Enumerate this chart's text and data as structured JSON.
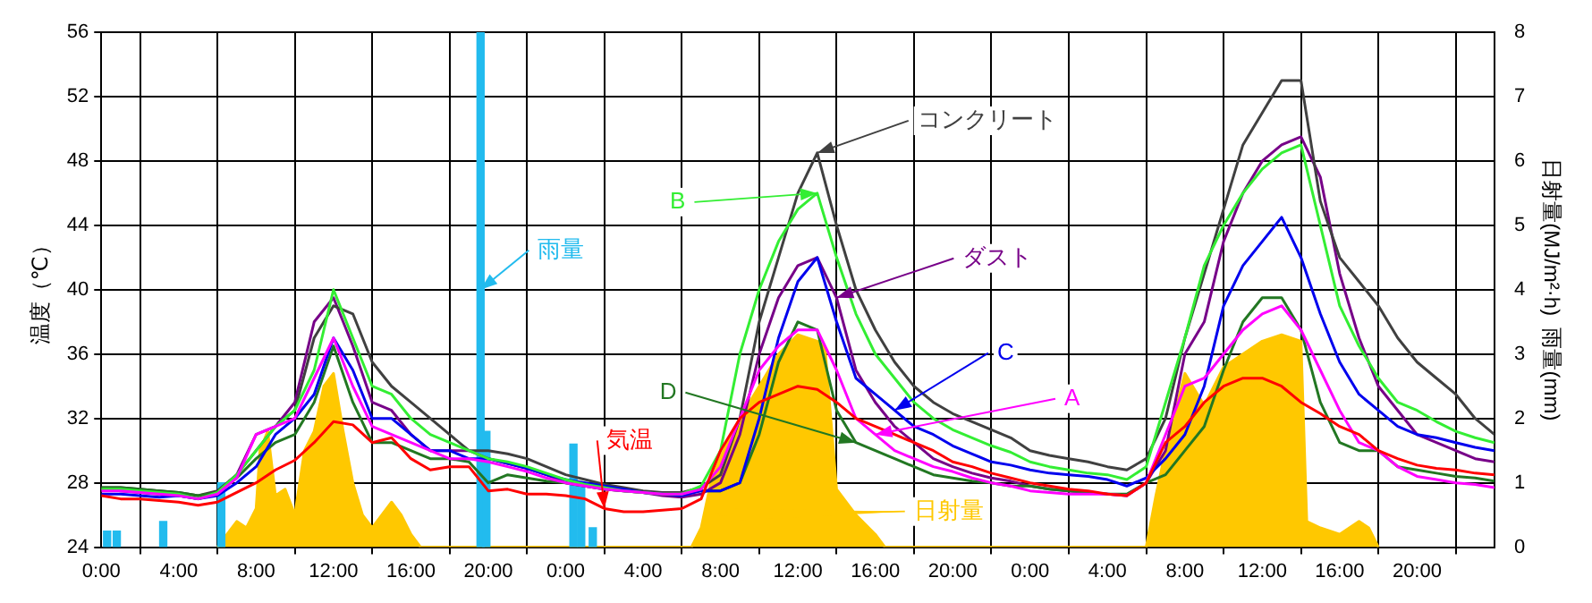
{
  "chart_data": {
    "type": "line",
    "ylabel": "温度（℃）",
    "y2label": "日射量(MJ/m²·h)  雨量(mm)",
    "x": [
      "--01-01T00:00",
      "--01-01T01:00",
      "--01-01T02:00",
      "--01-01T03:00",
      "--01-01T04:00",
      "--01-01T05:00",
      "--01-01T06:00",
      "--01-01T07:00",
      "--01-01T08:00",
      "--01-01T09:00",
      "--01-01T10:00",
      "--01-01T11:00",
      "--01-01T12:00",
      "--01-01T13:00",
      "--01-01T14:00",
      "--01-01T15:00",
      "--01-01T16:00",
      "--01-01T17:00",
      "--01-01T18:00",
      "--01-01T19:00",
      "--01-01T20:00",
      "--01-01T21:00",
      "--01-01T22:00",
      "--01-01T23:00",
      "--01-02T00:00",
      "--01-02T01:00",
      "--01-02T02:00",
      "--01-02T03:00",
      "--01-02T04:00",
      "--01-02T05:00",
      "--01-02T06:00",
      "--01-02T07:00",
      "--01-02T08:00",
      "--01-02T09:00",
      "--01-02T10:00",
      "--01-02T11:00",
      "--01-02T12:00",
      "--01-02T13:00",
      "--01-02T14:00",
      "--01-02T15:00",
      "--01-02T16:00",
      "--01-02T17:00",
      "--01-02T18:00",
      "--01-02T19:00",
      "--01-02T20:00",
      "--01-02T21:00",
      "--01-02T22:00",
      "--01-02T23:00",
      "--01-03T00:00",
      "--01-03T01:00",
      "--01-03T02:00",
      "--01-03T03:00",
      "--01-03T04:00",
      "--01-03T05:00",
      "--01-03T06:00",
      "--01-03T07:00",
      "--01-03T08:00",
      "--01-03T09:00",
      "--01-03T10:00",
      "--01-03T11:00",
      "--01-03T12:00",
      "--01-03T13:00",
      "--01-03T14:00",
      "--01-03T15:00",
      "--01-03T16:00",
      "--01-03T17:00",
      "--01-03T18:00",
      "--01-03T19:00",
      "--01-03T20:00",
      "--01-03T21:00",
      "--01-03T22:00",
      "--01-03T23:00",
      "--01-04T00:00"
    ],
    "xlim": [
      "--01-01T00:00",
      "--01-04T00:00"
    ],
    "xticks": [
      {
        "value": "--01-01T00:00",
        "label": "0:00"
      },
      {
        "value": "--01-01T04:00",
        "label": "4:00"
      },
      {
        "value": "--01-01T08:00",
        "label": "8:00"
      },
      {
        "value": "--01-01T12:00",
        "label": "12:00"
      },
      {
        "value": "--01-01T16:00",
        "label": "16:00"
      },
      {
        "value": "--01-01T20:00",
        "label": "20:00"
      },
      {
        "value": "--01-02T00:00",
        "label": "0:00"
      },
      {
        "value": "--01-02T04:00",
        "label": "4:00"
      },
      {
        "value": "--01-02T08:00",
        "label": "8:00"
      },
      {
        "value": "--01-02T12:00",
        "label": "12:00"
      },
      {
        "value": "--01-02T16:00",
        "label": "16:00"
      },
      {
        "value": "--01-02T20:00",
        "label": "20:00"
      },
      {
        "value": "--01-03T00:00",
        "label": "0:00"
      },
      {
        "value": "--01-03T04:00",
        "label": "4:00"
      },
      {
        "value": "--01-03T08:00",
        "label": "8:00"
      },
      {
        "value": "--01-03T12:00",
        "label": "12:00"
      },
      {
        "value": "--01-03T16:00",
        "label": "16:00"
      },
      {
        "value": "--01-03T20:00",
        "label": "20:00"
      }
    ],
    "ylim": [
      24,
      56
    ],
    "yticks": [
      24,
      28,
      32,
      36,
      40,
      44,
      48,
      52,
      56
    ],
    "y2lim": [
      0,
      8
    ],
    "y2ticks": [
      0,
      1,
      2,
      3,
      4,
      5,
      6,
      7,
      8
    ],
    "grid": true,
    "marker": "none",
    "line_style": "solid",
    "series": [
      {
        "name": "気温",
        "color": "#ff0000",
        "values": [
          27.2,
          27.0,
          27.0,
          26.9,
          26.8,
          26.6,
          26.8,
          27.4,
          28.0,
          28.8,
          29.4,
          30.5,
          31.8,
          31.6,
          30.5,
          30.8,
          29.5,
          28.8,
          29.0,
          29.0,
          27.5,
          27.6,
          27.3,
          27.3,
          27.2,
          27.0,
          26.4,
          26.2,
          26.2,
          26.3,
          26.4,
          27.0,
          30.0,
          32.0,
          33.0,
          33.5,
          34.0,
          33.8,
          33.0,
          32.0,
          31.5,
          31.0,
          30.5,
          30.0,
          29.3,
          29.0,
          28.6,
          28.3,
          28.0,
          27.8,
          27.6,
          27.5,
          27.3,
          27.2,
          28.0,
          30.5,
          31.5,
          33.0,
          34.0,
          34.5,
          34.5,
          34.0,
          33.0,
          32.3,
          31.5,
          31.0,
          30.0,
          29.5,
          29.1,
          28.9,
          28.8,
          28.6,
          28.5
        ]
      },
      {
        "name": "A",
        "color": "#ff00ff",
        "values": [
          27.5,
          27.5,
          27.4,
          27.3,
          27.2,
          27.0,
          27.3,
          28.3,
          31.0,
          31.5,
          32.0,
          34.5,
          37.0,
          34.0,
          31.5,
          31.0,
          30.5,
          30.0,
          29.5,
          29.5,
          29.3,
          29.0,
          28.7,
          28.3,
          28.0,
          27.8,
          27.6,
          27.5,
          27.4,
          27.3,
          27.3,
          27.6,
          29.0,
          32.0,
          35.0,
          36.5,
          37.5,
          37.5,
          35.0,
          32.0,
          31.0,
          30.0,
          29.5,
          29.0,
          28.7,
          28.3,
          28.0,
          27.8,
          27.5,
          27.4,
          27.3,
          27.3,
          27.3,
          27.2,
          28.0,
          31.0,
          34.0,
          34.5,
          36.0,
          37.5,
          38.5,
          39.0,
          37.5,
          35.0,
          32.5,
          30.5,
          30.0,
          29.0,
          28.4,
          28.2,
          28.0,
          27.9,
          27.7
        ]
      },
      {
        "name": "B",
        "color": "#33ee33",
        "values": [
          27.6,
          27.6,
          27.5,
          27.4,
          27.3,
          27.0,
          27.4,
          28.5,
          30.0,
          31.5,
          32.5,
          35.0,
          40.0,
          37.0,
          34.0,
          33.5,
          32.0,
          31.0,
          30.5,
          30.0,
          29.5,
          29.3,
          29.0,
          28.6,
          28.2,
          27.9,
          27.7,
          27.5,
          27.4,
          27.3,
          27.3,
          27.8,
          30.0,
          36.0,
          40.0,
          43.0,
          45.0,
          46.0,
          42.0,
          38.5,
          36.0,
          34.5,
          33.0,
          32.0,
          31.3,
          30.8,
          30.3,
          29.9,
          29.3,
          29.0,
          28.8,
          28.6,
          28.5,
          28.2,
          29.0,
          33.0,
          37.0,
          41.5,
          44.0,
          46.0,
          47.5,
          48.5,
          49.0,
          44.0,
          39.0,
          36.5,
          34.5,
          33.0,
          32.5,
          31.8,
          31.2,
          30.8,
          30.5
        ]
      },
      {
        "name": "C",
        "color": "#0000ee",
        "values": [
          27.3,
          27.3,
          27.2,
          27.1,
          27.2,
          27.0,
          27.2,
          28.0,
          29.0,
          31.0,
          32.0,
          33.5,
          37.0,
          35.0,
          32.0,
          32.0,
          31.0,
          30.0,
          30.0,
          29.5,
          29.5,
          29.2,
          28.9,
          28.5,
          28.2,
          28.0,
          27.8,
          27.6,
          27.4,
          27.3,
          27.2,
          27.5,
          27.5,
          28.0,
          32.0,
          37.0,
          40.5,
          42.0,
          38.0,
          34.5,
          33.5,
          32.5,
          31.5,
          31.0,
          30.3,
          29.8,
          29.3,
          29.1,
          28.8,
          28.6,
          28.5,
          28.4,
          28.2,
          27.8,
          28.3,
          29.5,
          31.0,
          34.0,
          39.0,
          41.5,
          43.0,
          44.5,
          42.0,
          38.5,
          35.5,
          33.5,
          32.5,
          31.5,
          31.0,
          30.8,
          30.5,
          30.2,
          30.0
        ]
      },
      {
        "name": "D",
        "color": "#227722",
        "values": [
          27.7,
          27.7,
          27.6,
          27.5,
          27.4,
          27.2,
          27.4,
          28.3,
          29.5,
          30.5,
          31.0,
          33.0,
          36.5,
          33.0,
          30.5,
          30.5,
          30.0,
          29.5,
          29.5,
          29.3,
          28.0,
          28.5,
          28.3,
          28.1,
          28.0,
          27.8,
          27.6,
          27.5,
          27.4,
          27.3,
          27.3,
          27.5,
          27.5,
          28.0,
          31.0,
          35.5,
          38.0,
          37.5,
          32.5,
          30.5,
          30.0,
          29.5,
          29.0,
          28.5,
          28.3,
          28.1,
          28.0,
          27.8,
          27.8,
          27.6,
          27.5,
          27.4,
          27.3,
          27.3,
          28.0,
          28.5,
          30.0,
          31.5,
          35.0,
          38.0,
          39.5,
          39.5,
          37.5,
          33.0,
          30.5,
          30.0,
          30.0,
          29.0,
          28.8,
          28.6,
          28.4,
          28.3,
          28.1
        ]
      },
      {
        "name": "コンクリート",
        "color": "#404040",
        "values": [
          27.7,
          27.7,
          27.6,
          27.5,
          27.4,
          27.2,
          27.5,
          28.5,
          30.0,
          31.5,
          32.5,
          37.0,
          39.0,
          38.5,
          35.5,
          34.0,
          33.0,
          32.0,
          31.0,
          30.0,
          30.0,
          29.8,
          29.5,
          29.0,
          28.5,
          28.2,
          27.9,
          27.7,
          27.5,
          27.4,
          27.4,
          27.7,
          28.5,
          32.0,
          38.0,
          42.0,
          46.0,
          48.5,
          44.0,
          40.0,
          37.5,
          35.5,
          34.0,
          33.0,
          32.3,
          31.8,
          31.3,
          30.8,
          30.0,
          29.7,
          29.5,
          29.3,
          29.0,
          28.8,
          29.5,
          32.0,
          37.0,
          41.0,
          45.0,
          49.0,
          51.0,
          53.0,
          53.0,
          45.5,
          42.0,
          40.5,
          39.0,
          37.0,
          35.5,
          34.5,
          33.5,
          32.0,
          31.0
        ]
      },
      {
        "name": "ダスト",
        "color": "#770088",
        "values": [
          27.6,
          27.5,
          27.4,
          27.3,
          27.2,
          27.0,
          27.3,
          28.5,
          31.0,
          31.5,
          33.0,
          38.0,
          39.5,
          36.5,
          33.0,
          32.5,
          31.0,
          30.0,
          30.0,
          30.0,
          29.5,
          29.2,
          28.9,
          28.5,
          28.0,
          27.8,
          27.6,
          27.5,
          27.4,
          27.2,
          27.1,
          27.3,
          28.0,
          31.0,
          36.0,
          39.5,
          41.5,
          42.0,
          39.5,
          35.0,
          33.0,
          31.5,
          30.5,
          29.5,
          29.0,
          28.6,
          28.3,
          28.1,
          27.8,
          27.6,
          27.5,
          27.4,
          27.3,
          27.2,
          28.0,
          30.0,
          36.0,
          38.0,
          43.0,
          46.0,
          48.0,
          49.0,
          49.5,
          47.0,
          41.0,
          37.0,
          34.0,
          32.5,
          31.0,
          30.5,
          30.0,
          29.5,
          29.3
        ]
      },
      {
        "name": "雨量",
        "type": "bar",
        "axis": "y2",
        "color": "#22bbee",
        "x": [
          "--01-01T00:18",
          "--01-01T00:48",
          "--01-01T03:12",
          "--01-01T06:12",
          "--01-01T19:36",
          "--01-01T19:54",
          "--01-02T00:24",
          "--01-02T00:48",
          "--01-02T01:24"
        ],
        "values": [
          0.25,
          0.25,
          0.4,
          1.0,
          8,
          1.8,
          1.6,
          1.0,
          0.3
        ]
      },
      {
        "name": "日射量",
        "type": "area",
        "axis": "y2",
        "color": "#ffc800",
        "x": [
          "--01-01T06:00",
          "--01-01T06:30",
          "--01-01T07:00",
          "--01-01T07:30",
          "--01-01T08:00",
          "--01-01T08:12",
          "--01-01T08:36",
          "--01-01T09:00",
          "--01-01T09:30",
          "--01-01T10:00",
          "--01-01T10:30",
          "--01-01T11:00",
          "--01-01T11:30",
          "--01-01T12:00",
          "--01-01T12:30",
          "--01-01T13:00",
          "--01-01T13:30",
          "--01-01T14:00",
          "--01-01T15:00",
          "--01-01T15:30",
          "--01-01T16:00",
          "--01-01T16:30",
          "--01-02T06:30",
          "--01-02T07:00",
          "--01-02T07:30",
          "--01-02T08:00",
          "--01-02T09:00",
          "--01-02T10:00",
          "--01-02T11:00",
          "--01-02T12:00",
          "--01-02T13:00",
          "--01-02T13:24",
          "--01-02T14:00",
          "--01-02T15:00",
          "--01-02T16:00",
          "--01-02T16:30",
          "--01-03T06:00",
          "--01-03T06:30",
          "--01-03T07:00",
          "--01-03T08:00",
          "--01-03T09:00",
          "--01-03T10:00",
          "--01-03T11:00",
          "--01-03T12:00",
          "--01-03T13:00",
          "--01-03T14:00",
          "--01-03T14:18",
          "--01-03T15:00",
          "--01-03T16:00",
          "--01-03T17:00",
          "--01-03T17:30",
          "--01-03T18:00"
        ],
        "values": [
          0,
          0.2,
          0.4,
          0.3,
          0.6,
          1.5,
          1.8,
          0.8,
          0.9,
          0.5,
          1.5,
          1.8,
          2.5,
          2.7,
          1.8,
          1.0,
          0.5,
          0.3,
          0.7,
          0.5,
          0.2,
          0,
          0,
          0.3,
          1.0,
          1.4,
          2.0,
          2.5,
          3.0,
          3.3,
          3.2,
          3.1,
          0.9,
          0.5,
          0.2,
          0,
          0,
          0.8,
          1.5,
          2.7,
          2.2,
          2.8,
          3.0,
          3.2,
          3.3,
          3.2,
          0.4,
          0.3,
          0.2,
          0.4,
          0.3,
          0
        ]
      }
    ]
  }
}
